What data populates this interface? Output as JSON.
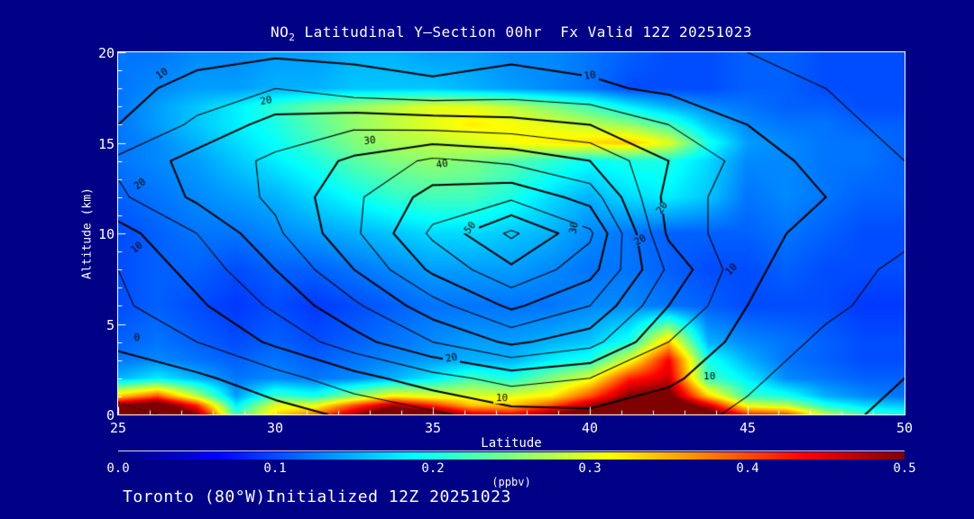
{
  "title": {
    "base": "NO",
    "sub": "2",
    "rest": " Latitudinal Y—Section 00hr  Fx Valid 12Z 20251023"
  },
  "footer": {
    "text": "Toronto (80°W)Initialized 12Z 20251023"
  },
  "axes": {
    "y": {
      "label": "Altitude (km)",
      "ticks": [
        "20",
        "15",
        "10",
        "5",
        "0"
      ]
    },
    "x": {
      "label": "Latitude",
      "ticks": [
        "25",
        "30",
        "35",
        "40",
        "45",
        "50"
      ]
    }
  },
  "colorbar": {
    "label": "(ppbv)",
    "ticks": [
      "0.0",
      "0.1",
      "0.2",
      "0.3",
      "0.4",
      "0.5"
    ]
  },
  "colors": {
    "background": "#000087",
    "frame": "#ffffff",
    "text": "#fdfdfd",
    "contour_line": "#000000",
    "colormap_ends": [
      "#000080",
      "#800000"
    ]
  },
  "chart_data": {
    "type": "filled_contour",
    "title": "NO2 Latitudinal Y-Section 00hr  Fx Valid 12Z 20251023",
    "xlabel": "Latitude",
    "ylabel": "Altitude (km)",
    "x": {
      "min": 25,
      "max": 50,
      "ticks": [
        25,
        30,
        35,
        40,
        45,
        50
      ],
      "minor_tick_step": 1
    },
    "y": {
      "min": 0,
      "max": 20,
      "ticks": [
        0,
        5,
        10,
        15,
        20
      ],
      "minor_tick_step": 1
    },
    "value": {
      "label": "(ppbv)",
      "min": 0.0,
      "max": 0.5,
      "colormap": "jet",
      "colorbar_ticks": [
        0.0,
        0.1,
        0.2,
        0.3,
        0.4,
        0.5
      ]
    },
    "fill_field": {
      "lats": [
        25,
        26.25,
        27.5,
        28.75,
        30,
        31.25,
        32.5,
        33.75,
        35,
        36.25,
        37.5,
        38.75,
        40,
        41.25,
        42.5,
        43.75,
        45,
        46.25,
        47.5,
        48.75,
        50
      ],
      "alts": [
        0,
        0.5,
        1,
        2,
        3,
        4,
        6,
        8,
        10,
        12,
        14,
        15,
        16,
        17,
        18,
        20
      ],
      "values": [
        [
          0.55,
          0.6,
          0.5,
          0.22,
          0.33,
          0.38,
          0.48,
          0.58,
          0.55,
          0.46,
          0.44,
          0.5,
          0.55,
          0.6,
          0.62,
          0.55,
          0.42,
          0.4,
          0.28,
          0.22,
          0.2
        ],
        [
          0.5,
          0.55,
          0.42,
          0.18,
          0.3,
          0.3,
          0.4,
          0.48,
          0.42,
          0.34,
          0.34,
          0.4,
          0.48,
          0.55,
          0.58,
          0.46,
          0.3,
          0.28,
          0.2,
          0.17,
          0.16
        ],
        [
          0.34,
          0.4,
          0.28,
          0.14,
          0.22,
          0.2,
          0.26,
          0.32,
          0.3,
          0.3,
          0.3,
          0.32,
          0.4,
          0.5,
          0.52,
          0.34,
          0.22,
          0.2,
          0.15,
          0.13,
          0.12
        ],
        [
          0.15,
          0.18,
          0.15,
          0.12,
          0.13,
          0.12,
          0.13,
          0.15,
          0.18,
          0.22,
          0.2,
          0.25,
          0.3,
          0.42,
          0.46,
          0.22,
          0.18,
          0.13,
          0.12,
          0.11,
          0.11
        ],
        [
          0.12,
          0.13,
          0.12,
          0.11,
          0.12,
          0.11,
          0.12,
          0.13,
          0.14,
          0.15,
          0.15,
          0.18,
          0.2,
          0.3,
          0.44,
          0.2,
          0.15,
          0.12,
          0.11,
          0.1,
          0.1
        ],
        [
          0.11,
          0.12,
          0.11,
          0.1,
          0.11,
          0.1,
          0.11,
          0.12,
          0.13,
          0.14,
          0.14,
          0.15,
          0.16,
          0.2,
          0.34,
          0.15,
          0.13,
          0.12,
          0.11,
          0.1,
          0.1
        ],
        [
          0.1,
          0.11,
          0.1,
          0.09,
          0.1,
          0.09,
          0.1,
          0.11,
          0.12,
          0.12,
          0.12,
          0.12,
          0.13,
          0.13,
          0.12,
          0.11,
          0.1,
          0.1,
          0.1,
          0.09,
          0.09
        ],
        [
          0.1,
          0.11,
          0.11,
          0.1,
          0.11,
          0.11,
          0.12,
          0.13,
          0.14,
          0.14,
          0.14,
          0.13,
          0.12,
          0.12,
          0.11,
          0.1,
          0.1,
          0.11,
          0.1,
          0.1,
          0.1
        ],
        [
          0.1,
          0.11,
          0.12,
          0.12,
          0.13,
          0.14,
          0.15,
          0.16,
          0.17,
          0.17,
          0.16,
          0.15,
          0.13,
          0.12,
          0.11,
          0.11,
          0.11,
          0.12,
          0.11,
          0.1,
          0.1
        ],
        [
          0.11,
          0.12,
          0.13,
          0.14,
          0.15,
          0.17,
          0.19,
          0.21,
          0.22,
          0.22,
          0.2,
          0.17,
          0.15,
          0.17,
          0.18,
          0.16,
          0.12,
          0.13,
          0.12,
          0.11,
          0.11
        ],
        [
          0.12,
          0.13,
          0.14,
          0.16,
          0.18,
          0.2,
          0.23,
          0.25,
          0.26,
          0.25,
          0.23,
          0.21,
          0.19,
          0.2,
          0.2,
          0.17,
          0.13,
          0.13,
          0.12,
          0.12,
          0.11
        ],
        [
          0.12,
          0.13,
          0.15,
          0.17,
          0.19,
          0.22,
          0.25,
          0.27,
          0.28,
          0.29,
          0.31,
          0.32,
          0.33,
          0.34,
          0.3,
          0.2,
          0.14,
          0.13,
          0.12,
          0.12,
          0.11
        ],
        [
          0.12,
          0.14,
          0.16,
          0.18,
          0.2,
          0.23,
          0.26,
          0.28,
          0.3,
          0.32,
          0.31,
          0.3,
          0.28,
          0.26,
          0.22,
          0.16,
          0.13,
          0.12,
          0.12,
          0.11,
          0.11
        ],
        [
          0.12,
          0.14,
          0.16,
          0.18,
          0.21,
          0.24,
          0.26,
          0.28,
          0.3,
          0.3,
          0.28,
          0.25,
          0.22,
          0.18,
          0.15,
          0.13,
          0.12,
          0.11,
          0.11,
          0.1,
          0.1
        ],
        [
          0.12,
          0.13,
          0.14,
          0.14,
          0.15,
          0.15,
          0.16,
          0.16,
          0.16,
          0.15,
          0.14,
          0.13,
          0.12,
          0.1,
          0.1,
          0.1,
          0.11,
          0.11,
          0.1,
          0.1,
          0.1
        ],
        [
          0.12,
          0.12,
          0.13,
          0.13,
          0.14,
          0.14,
          0.15,
          0.15,
          0.14,
          0.14,
          0.13,
          0.13,
          0.12,
          0.11,
          0.1,
          0.1,
          0.11,
          0.11,
          0.1,
          0.1,
          0.1
        ]
      ]
    },
    "line_field": {
      "lats": [
        25,
        27.5,
        30,
        32.5,
        35,
        37.5,
        40,
        42.5,
        45,
        47.5,
        50
      ],
      "alts": [
        0,
        2,
        4,
        6,
        8,
        10,
        12,
        14,
        16,
        18,
        20
      ],
      "values": [
        [
          -6,
          -4,
          -2,
          1,
          4,
          8,
          9,
          7,
          4,
          1,
          -1
        ],
        [
          -3,
          -1,
          3,
          8,
          13,
          17,
          15,
          11,
          6,
          2,
          0
        ],
        [
          1,
          5,
          11,
          18,
          25,
          31,
          27,
          15,
          8,
          4,
          2
        ],
        [
          4,
          9,
          16,
          24,
          33,
          41,
          35,
          20,
          10,
          6,
          3
        ],
        [
          5,
          12,
          20,
          30,
          41,
          49,
          42,
          24,
          11,
          7,
          4
        ],
        [
          8,
          15,
          24,
          34,
          46,
          56,
          46,
          19,
          11,
          9,
          6
        ],
        [
          14,
          21,
          26,
          34,
          42,
          44,
          38,
          18,
          12,
          10,
          7
        ],
        [
          16,
          22,
          26,
          31,
          36,
          34,
          30,
          20,
          13,
          8,
          5
        ],
        [
          10,
          16,
          22,
          24,
          23,
          22,
          20,
          15,
          10,
          6,
          4
        ],
        [
          8,
          12,
          15,
          12,
          11,
          12,
          11,
          9,
          7,
          5,
          4
        ],
        [
          6,
          8,
          9,
          9,
          8,
          9,
          8,
          6,
          5,
          4,
          3
        ]
      ],
      "levels": [
        -5,
        0,
        5,
        10,
        15,
        20,
        25,
        30,
        35,
        40,
        45,
        50,
        55
      ],
      "labeled_levels": [
        0,
        10,
        20,
        30,
        40,
        50
      ],
      "negative_style": "dotted"
    },
    "contour_labels": [
      {
        "lat": 26.4,
        "alt": 18.8,
        "text": "10",
        "rot": -35
      },
      {
        "lat": 29.7,
        "alt": 17.3,
        "text": "20",
        "rot": -10
      },
      {
        "lat": 33.0,
        "alt": 15.1,
        "text": "30",
        "rot": -5
      },
      {
        "lat": 25.7,
        "alt": 12.7,
        "text": "20",
        "rot": -35
      },
      {
        "lat": 25.6,
        "alt": 9.2,
        "text": "10",
        "rot": -40
      },
      {
        "lat": 35.3,
        "alt": 13.8,
        "text": "40",
        "rot": -10
      },
      {
        "lat": 36.2,
        "alt": 10.3,
        "text": "50",
        "rot": -50
      },
      {
        "lat": 39.5,
        "alt": 10.3,
        "text": "30",
        "rot": -78
      },
      {
        "lat": 42.3,
        "alt": 11.4,
        "text": "20",
        "rot": -55
      },
      {
        "lat": 41.6,
        "alt": 9.6,
        "text": "20",
        "rot": -30
      },
      {
        "lat": 44.5,
        "alt": 8.0,
        "text": "10",
        "rot": -45
      },
      {
        "lat": 40.0,
        "alt": 18.7,
        "text": "10",
        "rot": -8
      },
      {
        "lat": 25.6,
        "alt": 4.2,
        "text": "0",
        "rot": 0
      },
      {
        "lat": 35.6,
        "alt": 3.1,
        "text": "20",
        "rot": -12
      },
      {
        "lat": 43.8,
        "alt": 2.1,
        "text": "10",
        "rot": 0
      },
      {
        "lat": 37.2,
        "alt": 0.9,
        "text": "10",
        "rot": 0
      }
    ]
  }
}
